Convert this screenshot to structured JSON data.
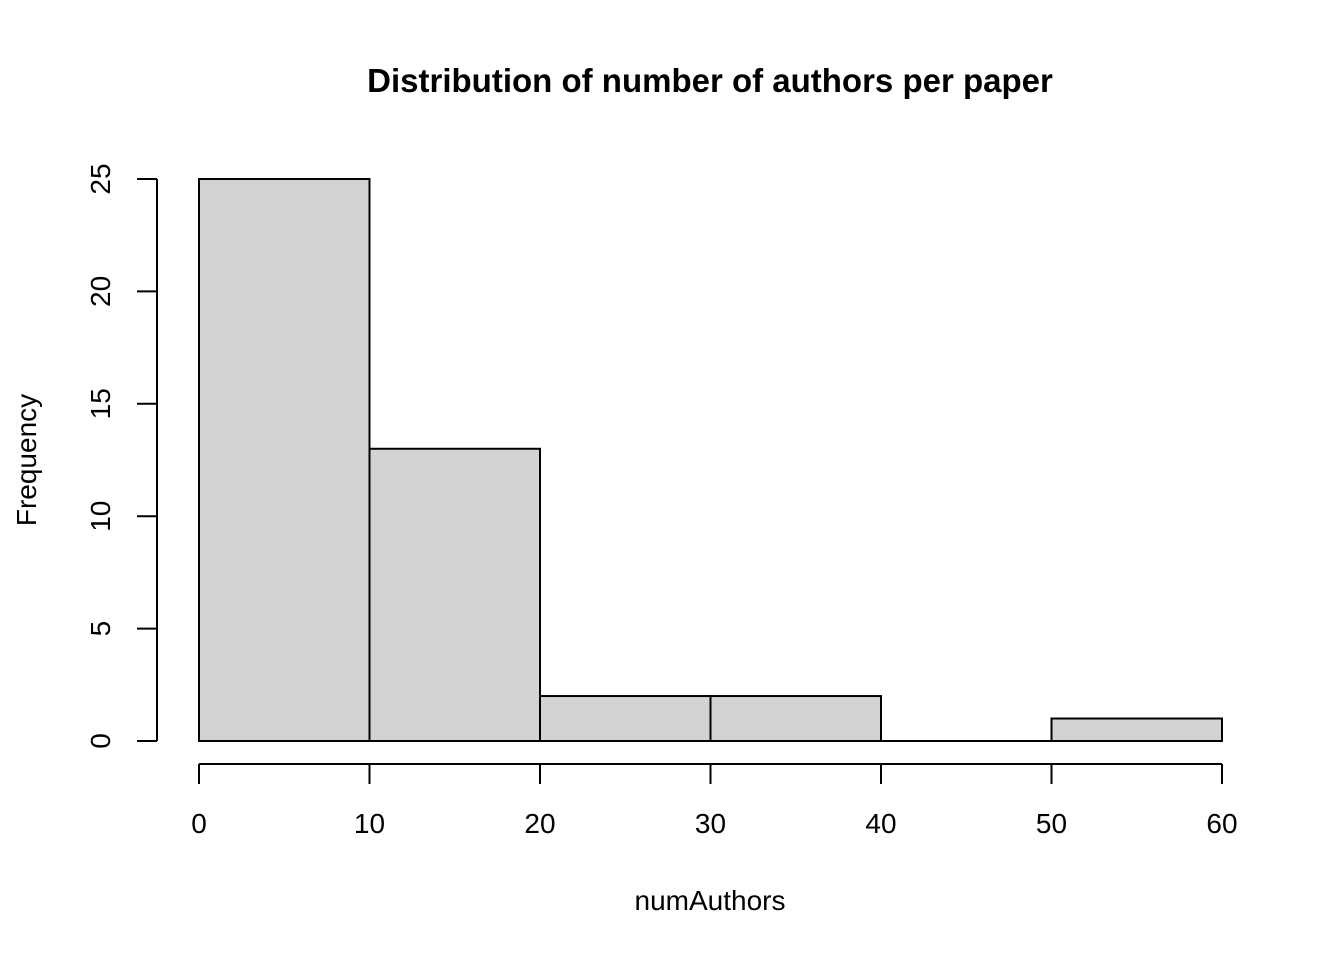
{
  "chart_data": {
    "type": "bar",
    "title": "Distribution of number of authors per paper",
    "xlabel": "numAuthors",
    "ylabel": "Frequency",
    "bins": [
      {
        "start": 0,
        "end": 10,
        "count": 25
      },
      {
        "start": 10,
        "end": 20,
        "count": 13
      },
      {
        "start": 20,
        "end": 30,
        "count": 2
      },
      {
        "start": 30,
        "end": 40,
        "count": 2
      },
      {
        "start": 40,
        "end": 50,
        "count": 0
      },
      {
        "start": 50,
        "end": 60,
        "count": 1
      }
    ],
    "xlim": [
      0,
      60
    ],
    "ylim": [
      0,
      25
    ],
    "x_ticks": [
      0,
      10,
      20,
      30,
      40,
      50,
      60
    ],
    "y_ticks": [
      0,
      5,
      10,
      15,
      20,
      25
    ],
    "bar_color": "#d3d3d3",
    "edge_color": "#000000",
    "grid": false,
    "legend": "none"
  }
}
